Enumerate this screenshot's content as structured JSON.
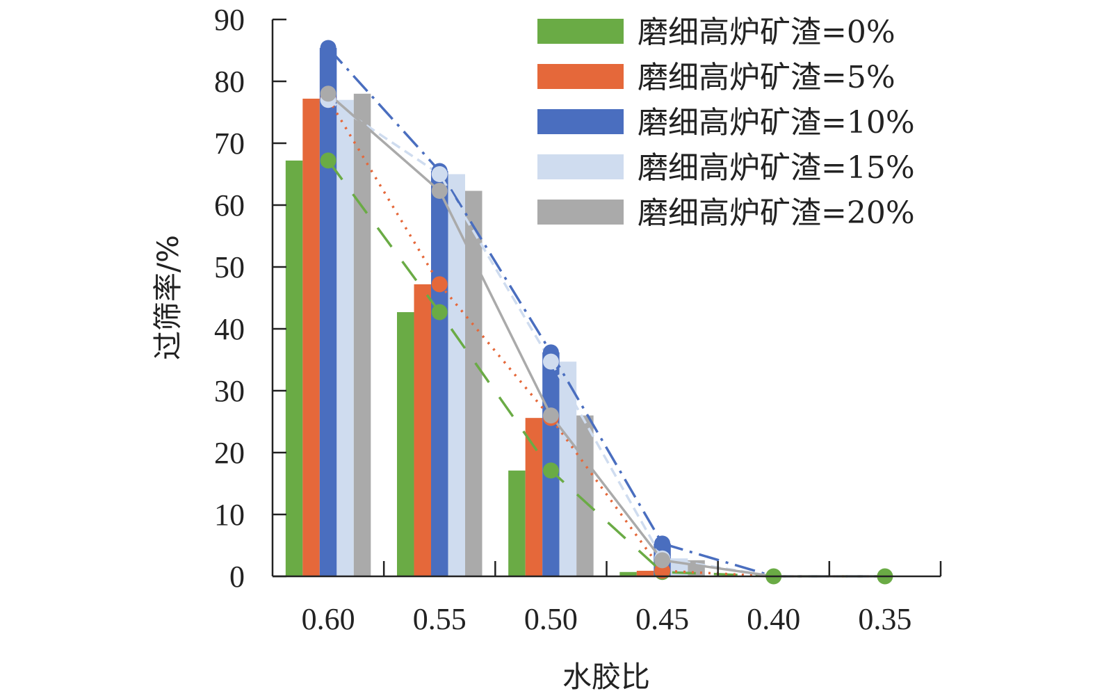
{
  "chart_data": {
    "type": "bar",
    "categories": [
      "0.60",
      "0.55",
      "0.50",
      "0.45",
      "0.40",
      "0.35"
    ],
    "xlabel": "水胶比",
    "ylabel": "过筛率/%",
    "ylim": [
      0,
      90
    ],
    "yticks": [
      0,
      10,
      20,
      30,
      40,
      50,
      60,
      70,
      80,
      90
    ],
    "grid": false,
    "legend_position": "top-right",
    "series": [
      {
        "name": "磨细高炉矿渣=0%",
        "color": "#6aab45",
        "values": [
          67.2,
          42.7,
          17.1,
          0.7,
          0,
          0
        ],
        "line_dash": "34,26"
      },
      {
        "name": "磨细高炉矿渣=5%",
        "color": "#e5683a",
        "values": [
          77.2,
          47.2,
          25.6,
          0.9,
          0,
          0
        ],
        "line_dash": "3,9"
      },
      {
        "name": "磨细高炉矿渣=10%",
        "color": "#4a6ebf",
        "values": [
          85.4,
          65.5,
          36.2,
          5.3,
          0,
          0
        ],
        "line_dash": "30,10,4,10"
      },
      {
        "name": "磨细高炉矿渣=15%",
        "color": "#cfdcef",
        "values": [
          77.0,
          65.0,
          34.7,
          2.9,
          0,
          0
        ],
        "line_dash": "14,8"
      },
      {
        "name": "磨细高炉矿渣=20%",
        "color": "#aaaaaa",
        "values": [
          78.0,
          62.3,
          26.0,
          2.6,
          0,
          0
        ],
        "line_dash": ""
      }
    ]
  }
}
